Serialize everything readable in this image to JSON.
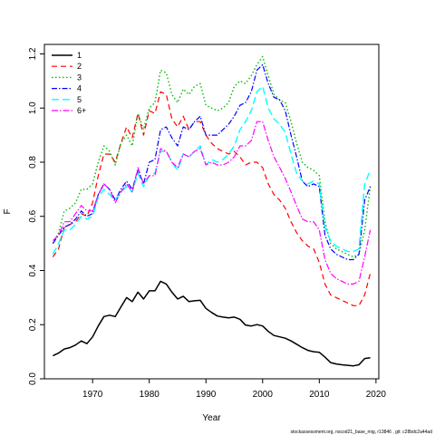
{
  "chart_data": {
    "type": "line",
    "xlabel": "Year",
    "ylabel": "F",
    "xlim": [
      1961.5,
      2020.5
    ],
    "ylim": [
      0,
      1.235
    ],
    "xticks": [
      1970,
      1980,
      1990,
      2000,
      2010,
      2020
    ],
    "yticks": [
      0.0,
      0.2,
      0.4,
      0.6,
      0.8,
      1.0,
      1.2
    ],
    "grid": false,
    "legend_position": "top-left",
    "footnote": "stockassessment.org, nscod21_base_mig, r13846 , git: c28bdc2a44ad",
    "x": [
      1963,
      1964,
      1965,
      1966,
      1967,
      1968,
      1969,
      1970,
      1971,
      1972,
      1973,
      1974,
      1975,
      1976,
      1977,
      1978,
      1979,
      1980,
      1981,
      1982,
      1983,
      1984,
      1985,
      1986,
      1987,
      1988,
      1989,
      1990,
      1991,
      1992,
      1993,
      1994,
      1995,
      1996,
      1997,
      1998,
      1999,
      2000,
      2001,
      2002,
      2003,
      2004,
      2005,
      2006,
      2007,
      2008,
      2009,
      2010,
      2011,
      2012,
      2013,
      2014,
      2015,
      2016,
      2017,
      2018,
      2019
    ],
    "series": [
      {
        "name": "1",
        "color": "#000000",
        "dash": "solid",
        "width": 1.5,
        "values": [
          0.085,
          0.095,
          0.11,
          0.115,
          0.125,
          0.14,
          0.13,
          0.155,
          0.195,
          0.23,
          0.235,
          0.23,
          0.265,
          0.3,
          0.285,
          0.32,
          0.295,
          0.325,
          0.325,
          0.36,
          0.35,
          0.32,
          0.295,
          0.305,
          0.285,
          0.288,
          0.29,
          0.26,
          0.245,
          0.232,
          0.228,
          0.225,
          0.228,
          0.22,
          0.198,
          0.195,
          0.2,
          0.195,
          0.175,
          0.16,
          0.155,
          0.15,
          0.14,
          0.128,
          0.115,
          0.105,
          0.1,
          0.098,
          0.08,
          0.06,
          0.055,
          0.052,
          0.05,
          0.048,
          0.052,
          0.075,
          0.078
        ]
      },
      {
        "name": "2",
        "color": "#ff0000",
        "dash": "6,4",
        "width": 1.2,
        "values": [
          0.45,
          0.48,
          0.56,
          0.57,
          0.58,
          0.61,
          0.6,
          0.65,
          0.75,
          0.83,
          0.83,
          0.8,
          0.87,
          0.93,
          0.89,
          0.98,
          0.9,
          0.99,
          0.98,
          1.06,
          1.05,
          0.96,
          0.93,
          0.97,
          0.92,
          0.95,
          0.95,
          0.9,
          0.87,
          0.85,
          0.84,
          0.83,
          0.84,
          0.82,
          0.79,
          0.8,
          0.8,
          0.78,
          0.72,
          0.68,
          0.66,
          0.63,
          0.58,
          0.54,
          0.51,
          0.49,
          0.48,
          0.43,
          0.35,
          0.31,
          0.3,
          0.29,
          0.28,
          0.27,
          0.27,
          0.31,
          0.39
        ]
      },
      {
        "name": "3",
        "color": "#00bb00",
        "dash": "1.5,2.5",
        "width": 1.4,
        "values": [
          0.5,
          0.54,
          0.62,
          0.63,
          0.65,
          0.7,
          0.7,
          0.72,
          0.8,
          0.86,
          0.84,
          0.79,
          0.87,
          0.9,
          0.86,
          0.98,
          0.92,
          1.0,
          1.02,
          1.14,
          1.13,
          1.05,
          1.02,
          1.07,
          1.05,
          1.08,
          1.09,
          1.01,
          1.0,
          0.99,
          1.0,
          1.02,
          1.08,
          1.1,
          1.09,
          1.12,
          1.16,
          1.19,
          1.12,
          1.05,
          1.03,
          1.02,
          0.95,
          0.87,
          0.8,
          0.78,
          0.77,
          0.75,
          0.58,
          0.5,
          0.48,
          0.47,
          0.46,
          0.45,
          0.46,
          0.55,
          0.71
        ]
      },
      {
        "name": "4",
        "color": "#0000ff",
        "dash": "6,2,1.5,2",
        "width": 1.2,
        "values": [
          0.5,
          0.53,
          0.56,
          0.57,
          0.59,
          0.62,
          0.6,
          0.61,
          0.68,
          0.72,
          0.7,
          0.66,
          0.7,
          0.73,
          0.7,
          0.77,
          0.72,
          0.8,
          0.81,
          0.92,
          0.93,
          0.89,
          0.86,
          0.93,
          0.92,
          0.95,
          0.97,
          0.9,
          0.9,
          0.9,
          0.92,
          0.94,
          0.97,
          1.01,
          1.02,
          1.06,
          1.14,
          1.16,
          1.09,
          1.04,
          1.03,
          0.99,
          0.9,
          0.82,
          0.73,
          0.71,
          0.72,
          0.71,
          0.53,
          0.48,
          0.46,
          0.45,
          0.44,
          0.44,
          0.46,
          0.66,
          0.71
        ]
      },
      {
        "name": "5",
        "color": "#00ffff",
        "dash": "8,4",
        "width": 1.4,
        "values": [
          0.46,
          0.5,
          0.55,
          0.55,
          0.57,
          0.6,
          0.59,
          0.6,
          0.67,
          0.7,
          0.68,
          0.66,
          0.69,
          0.71,
          0.69,
          0.76,
          0.71,
          0.75,
          0.76,
          0.84,
          0.84,
          0.8,
          0.77,
          0.83,
          0.82,
          0.84,
          0.86,
          0.79,
          0.81,
          0.8,
          0.81,
          0.83,
          0.86,
          0.92,
          0.95,
          0.99,
          1.06,
          1.08,
          1.0,
          0.96,
          0.94,
          0.91,
          0.83,
          0.76,
          0.73,
          0.72,
          0.73,
          0.72,
          0.56,
          0.51,
          0.49,
          0.48,
          0.47,
          0.47,
          0.48,
          0.72,
          0.77
        ]
      },
      {
        "name": "6+",
        "color": "#ff00ff",
        "dash": "7,2,1.5,2",
        "width": 1.2,
        "values": [
          0.51,
          0.53,
          0.58,
          0.58,
          0.61,
          0.64,
          0.62,
          0.62,
          0.68,
          0.72,
          0.7,
          0.65,
          0.69,
          0.72,
          0.69,
          0.78,
          0.72,
          0.75,
          0.75,
          0.85,
          0.84,
          0.8,
          0.78,
          0.83,
          0.82,
          0.84,
          0.85,
          0.79,
          0.8,
          0.79,
          0.79,
          0.8,
          0.82,
          0.86,
          0.86,
          0.88,
          0.95,
          0.95,
          0.88,
          0.82,
          0.78,
          0.74,
          0.69,
          0.64,
          0.59,
          0.58,
          0.58,
          0.55,
          0.44,
          0.39,
          0.37,
          0.36,
          0.35,
          0.35,
          0.36,
          0.45,
          0.55
        ]
      }
    ]
  }
}
